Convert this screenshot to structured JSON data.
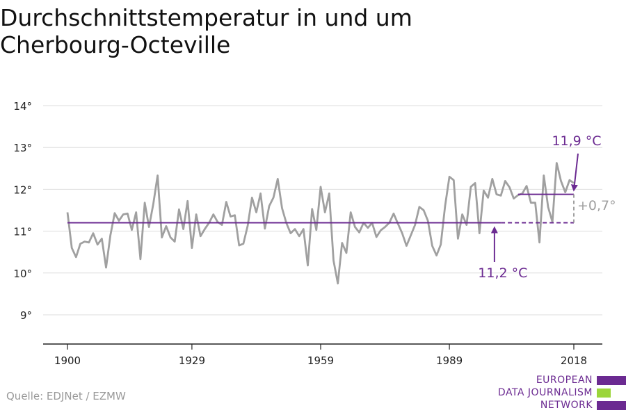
{
  "title": "Durchschnittstemperatur in und um Cherbourg-Octeville",
  "source": "Quelle: EDJNet / EZMW",
  "logo": {
    "lines": [
      "EUROPEAN",
      "DATA JOURNALISM",
      "NETWORK"
    ],
    "colors": {
      "purple": "#6b2a91",
      "green": "#9bd53a"
    }
  },
  "colors": {
    "series": "#a0a0a0",
    "reference": "#6b2a91",
    "grid": "#dddddd",
    "axis": "#222222",
    "delta": "#a0a0a0"
  },
  "chart_data": {
    "type": "line",
    "title": "Durchschnittstemperatur in und um Cherbourg-Octeville",
    "xlabel": "",
    "ylabel": "",
    "xlim": [
      1900,
      2018
    ],
    "ylim": [
      8.3,
      14.5
    ],
    "grid": true,
    "x_ticks": [
      1900,
      1929,
      1959,
      1989,
      2018
    ],
    "x_tick_labels": [
      "1900",
      "1929",
      "1959",
      "1989",
      "2018"
    ],
    "y_ticks": [
      9,
      10,
      11,
      12,
      13,
      14
    ],
    "y_tick_labels": [
      "9°",
      "10°",
      "11°",
      "12°",
      "13°",
      "14°"
    ],
    "series": [
      {
        "x": [
          1900,
          1901,
          1902,
          1903,
          1904,
          1905,
          1906,
          1907,
          1908,
          1909,
          1910,
          1911,
          1912,
          1913,
          1914,
          1915,
          1916,
          1917,
          1918,
          1919,
          1920,
          1921,
          1922,
          1923,
          1924,
          1925,
          1926,
          1927,
          1928,
          1929,
          1930,
          1931,
          1932,
          1933,
          1934,
          1935,
          1936,
          1937,
          1938,
          1939,
          1940,
          1941,
          1942,
          1943,
          1944,
          1945,
          1946,
          1947,
          1948,
          1949,
          1950,
          1951,
          1952,
          1953,
          1954,
          1955,
          1956,
          1957,
          1958,
          1959,
          1960,
          1961,
          1962,
          1963,
          1964,
          1965,
          1966,
          1967,
          1968,
          1969,
          1970,
          1971,
          1972,
          1973,
          1974,
          1975,
          1976,
          1977,
          1978,
          1979,
          1980,
          1981,
          1982,
          1983,
          1984,
          1985,
          1986,
          1987,
          1988,
          1989,
          1990,
          1991,
          1992,
          1993,
          1994,
          1995,
          1996,
          1997,
          1998,
          1999,
          2000,
          2001,
          2002,
          2003,
          2004,
          2005,
          2006,
          2007,
          2008,
          2009,
          2010,
          2011,
          2012,
          2013,
          2014,
          2015,
          2016,
          2017,
          2018
        ],
        "values": [
          11.45,
          10.6,
          10.38,
          10.7,
          10.75,
          10.73,
          10.95,
          10.68,
          10.82,
          10.13,
          10.9,
          11.43,
          11.25,
          11.4,
          11.42,
          11.03,
          11.45,
          10.33,
          11.68,
          11.1,
          11.65,
          12.33,
          10.85,
          11.12,
          10.85,
          10.75,
          11.52,
          11.05,
          11.72,
          10.6,
          11.4,
          10.88,
          11.05,
          11.2,
          11.4,
          11.22,
          11.15,
          11.7,
          11.35,
          11.38,
          10.66,
          10.7,
          11.13,
          11.8,
          11.45,
          11.9,
          11.06,
          11.6,
          11.8,
          12.25,
          11.55,
          11.2,
          10.95,
          11.05,
          10.88,
          11.05,
          10.18,
          11.53,
          11.03,
          12.06,
          11.45,
          11.9,
          10.3,
          9.75,
          10.72,
          10.48,
          11.45,
          11.1,
          10.97,
          11.2,
          11.08,
          11.2,
          10.86,
          11.02,
          11.1,
          11.2,
          11.42,
          11.18,
          10.95,
          10.65,
          10.9,
          11.15,
          11.58,
          11.5,
          11.25,
          10.65,
          10.42,
          10.68,
          11.6,
          12.3,
          12.22,
          10.82,
          11.4,
          11.15,
          12.06,
          12.15,
          10.95,
          11.97,
          11.8,
          12.25,
          11.88,
          11.85,
          12.2,
          12.05,
          11.78,
          11.86,
          11.9,
          12.08,
          11.68,
          11.68,
          10.73,
          12.33,
          11.58,
          11.22,
          12.63,
          12.2,
          11.93,
          12.22,
          12.15
        ]
      }
    ],
    "reference_lines": [
      {
        "label": "11,2 °C",
        "value": 11.2,
        "x_from": 1900,
        "x_to": 2001,
        "dashed_to": 2018
      },
      {
        "label": "11,9 °C",
        "value": 11.88,
        "x_from": 2005,
        "x_to": 2018
      }
    ],
    "delta_label": "+0,7°"
  }
}
